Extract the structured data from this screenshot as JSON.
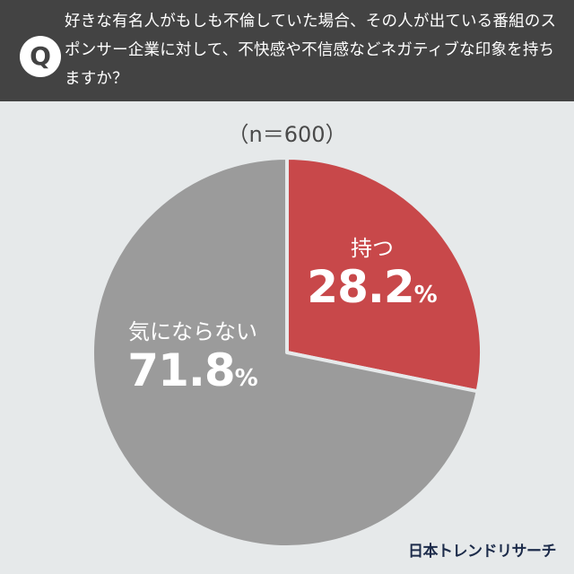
{
  "header": {
    "badge": "Q",
    "question": "好きな有名人がもしも不倫していた場合、その人が出ている番組のスポンサー企業に対して、不快感や不信感などネガティブな印象を持ちますか？"
  },
  "sample_size": "（n＝600）",
  "slices": [
    {
      "label": "持つ",
      "value": "28.2",
      "unit": "%",
      "color": "#c8484a"
    },
    {
      "label": "気にならない",
      "value": "71.8",
      "unit": "%",
      "color": "#9b9b9b"
    }
  ],
  "logo": "日本トレンドリサーチ",
  "chart_data": {
    "type": "pie",
    "title": "好きな有名人がもしも不倫していた場合、その人が出ている番組のスポンサー企業に対して、不快感や不信感などネガティブな印象を持ちますか？",
    "subtitle": "（n＝600）",
    "categories": [
      "持つ",
      "気にならない"
    ],
    "values": [
      28.2,
      71.8
    ],
    "colors": [
      "#c8484a",
      "#9b9b9b"
    ],
    "start_angle": "12 o'clock, clockwise",
    "legend": "none (labels inside slices)",
    "source": "日本トレンドリサーチ"
  }
}
